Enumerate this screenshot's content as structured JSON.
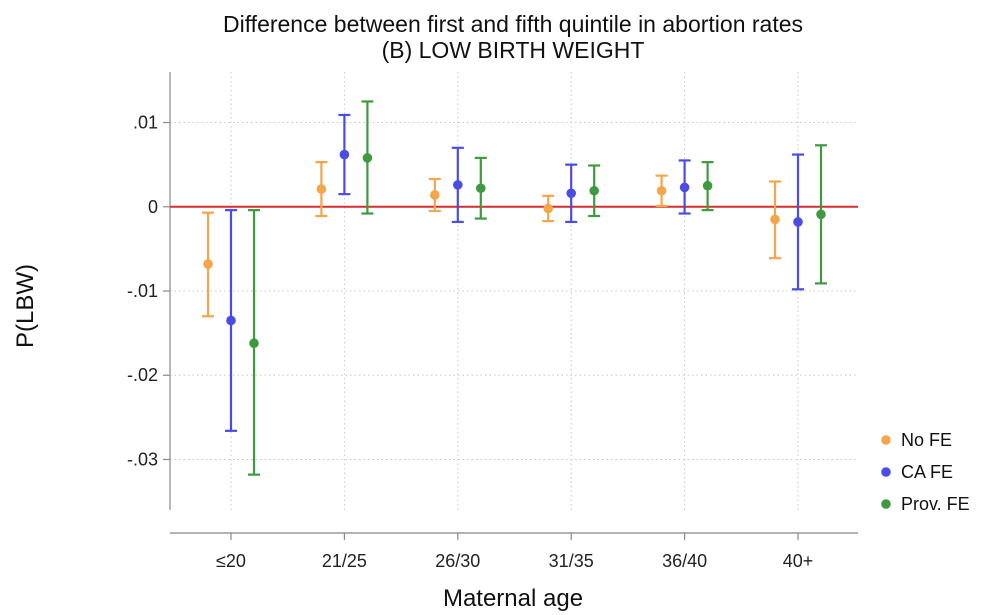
{
  "chart_data": {
    "type": "scatter",
    "title": "Difference between first and fifth quintile in abortion rates",
    "subtitle": "(B) LOW BIRTH WEIGHT",
    "xlabel": "Maternal age",
    "ylabel": "P(LBW)",
    "categories": [
      "≤20",
      "21/25",
      "26/30",
      "31/35",
      "36/40",
      "40+"
    ],
    "ylim": [
      -0.036,
      0.016
    ],
    "yticks": [
      0.01,
      0,
      -0.01,
      -0.02,
      -0.03
    ],
    "ytick_labels": [
      ".01",
      "0",
      "-.01",
      "-.02",
      "-.03"
    ],
    "reference_line": 0,
    "grid": true,
    "legend_position": "right",
    "series": [
      {
        "name": "No FE",
        "color": "#f5a54a",
        "values": [
          -0.0068,
          0.0021,
          0.0014,
          -0.0002,
          0.0019,
          -0.0015
        ],
        "lower": [
          -0.013,
          -0.0011,
          -0.0005,
          -0.0017,
          0.0001,
          -0.0061
        ],
        "upper": [
          -0.0007,
          0.0053,
          0.0033,
          0.0013,
          0.0037,
          0.003
        ]
      },
      {
        "name": "CA FE",
        "color": "#4b4be6",
        "values": [
          -0.0135,
          0.0062,
          0.0026,
          0.0016,
          0.0023,
          -0.0018
        ],
        "lower": [
          -0.0266,
          0.0015,
          -0.0018,
          -0.0018,
          -0.0008,
          -0.0098
        ],
        "upper": [
          -0.0004,
          0.0109,
          0.007,
          0.005,
          0.0055,
          0.0062
        ]
      },
      {
        "name": "Prov. FE",
        "color": "#3f9a3f",
        "values": [
          -0.0162,
          0.0058,
          0.0022,
          0.0019,
          0.0025,
          -0.0009
        ],
        "lower": [
          -0.0318,
          -0.0008,
          -0.0014,
          -0.0011,
          -0.0004,
          -0.0091
        ],
        "upper": [
          -0.0004,
          0.0125,
          0.0058,
          0.0049,
          0.0053,
          0.0073
        ]
      }
    ]
  }
}
